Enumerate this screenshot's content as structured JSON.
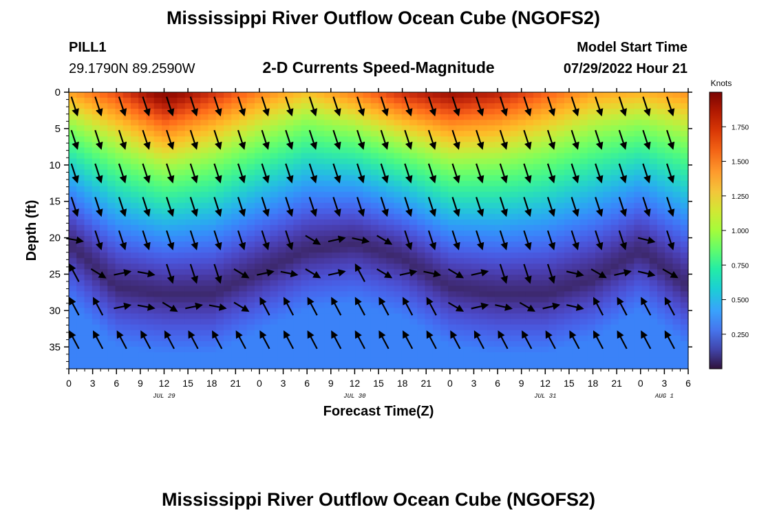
{
  "header": {
    "title": "Mississippi River Outflow Ocean Cube (NGOFS2)",
    "station": "PILL1",
    "location": "29.1790N  89.2590W",
    "subtitle": "2-D Currents Speed-Magnitude",
    "model_start_label": "Model Start Time",
    "model_start_value": "07/29/2022 Hour 21"
  },
  "footer": {
    "title": "Mississippi River Outflow Ocean Cube (NGOFS2)"
  },
  "colors": {
    "low": "#30123b",
    "mid": "#28bceb",
    "high": "#7a0403",
    "arrow": "#000000"
  },
  "chart_data": {
    "type": "heatmap",
    "ylabel": "Depth (ft)",
    "xlabel": "Forecast Time(Z)",
    "x_tick_labels": [
      "0",
      "3",
      "6",
      "9",
      "12",
      "15",
      "18",
      "21",
      "0",
      "3",
      "6",
      "9",
      "12",
      "15",
      "18",
      "21",
      "0",
      "3",
      "6",
      "9",
      "12",
      "15",
      "18",
      "21",
      "0",
      "3",
      "6"
    ],
    "y_tick_labels": [
      "0",
      "5",
      "10",
      "15",
      "20",
      "25",
      "30",
      "35"
    ],
    "y_ticks": [
      0,
      5,
      10,
      15,
      20,
      25,
      30,
      35
    ],
    "ylim": [
      38,
      0
    ],
    "xlim_hours": [
      0,
      78
    ],
    "date_labels": [
      {
        "text": "JUL 29",
        "hour": 12
      },
      {
        "text": "JUL 30",
        "hour": 36
      },
      {
        "text": "JUL 31",
        "hour": 60
      },
      {
        "text": "AUG 1",
        "hour": 75
      }
    ],
    "colorbar": {
      "unit": "Knots",
      "tick_labels": [
        "0.250",
        "0.500",
        "0.750",
        "1.000",
        "1.250",
        "1.500",
        "1.750"
      ],
      "ticks": [
        0.25,
        0.5,
        0.75,
        1.0,
        1.25,
        1.5,
        1.75
      ],
      "range": [
        0,
        2.0
      ],
      "colormap": "turbo"
    },
    "surface_speed_knots": [
      {
        "hour": 0,
        "speed": 1.35
      },
      {
        "hour": 6,
        "speed": 1.6
      },
      {
        "hour": 12,
        "speed": 1.95
      },
      {
        "hour": 18,
        "speed": 1.7
      },
      {
        "hour": 24,
        "speed": 1.45
      },
      {
        "hour": 30,
        "speed": 1.25
      },
      {
        "hour": 36,
        "speed": 1.45
      },
      {
        "hour": 42,
        "speed": 1.7
      },
      {
        "hour": 48,
        "speed": 1.85
      },
      {
        "hour": 54,
        "speed": 1.75
      },
      {
        "hour": 60,
        "speed": 1.55
      },
      {
        "hour": 66,
        "speed": 1.35
      },
      {
        "hour": 72,
        "speed": 1.3
      },
      {
        "hour": 78,
        "speed": 1.4
      }
    ],
    "min_speed_layer_depth_ft": [
      {
        "hour": 0,
        "depth": 21
      },
      {
        "hour": 6,
        "depth": 27
      },
      {
        "hour": 12,
        "depth": 28
      },
      {
        "hour": 18,
        "depth": 28
      },
      {
        "hour": 24,
        "depth": 25
      },
      {
        "hour": 30,
        "depth": 22
      },
      {
        "hour": 36,
        "depth": 21
      },
      {
        "hour": 42,
        "depth": 23
      },
      {
        "hour": 48,
        "depth": 27
      },
      {
        "hour": 54,
        "depth": 28
      },
      {
        "hour": 60,
        "depth": 28
      },
      {
        "hour": 66,
        "depth": 26
      },
      {
        "hour": 72,
        "depth": 22
      },
      {
        "hour": 78,
        "depth": 27
      }
    ],
    "grid": false
  }
}
